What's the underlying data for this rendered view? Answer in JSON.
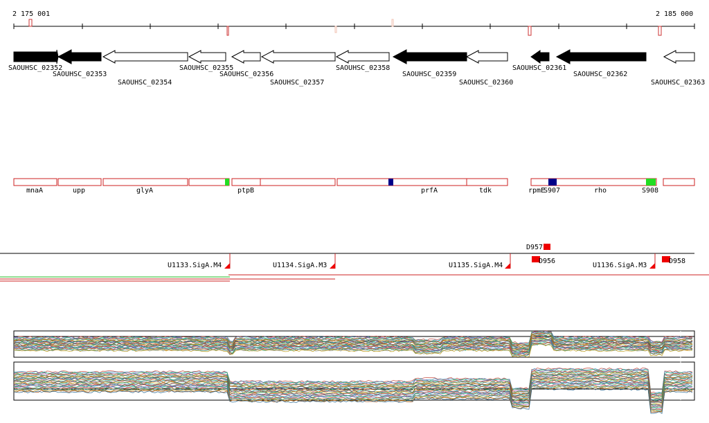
{
  "ruler": {
    "start_label": "2 175 001",
    "end_label": "2 185 000",
    "start_bp": 2175001,
    "end_bp": 2185000
  },
  "colors": {
    "gene_filled": "#000000",
    "gene_outline": "#000000",
    "annotation_border": "#cc2222",
    "green_marker": "#22dd22",
    "navy_marker": "#000088",
    "red_marker": "#ee0000",
    "track_line": "#cc2222"
  },
  "genes": [
    {
      "name": "SAOUHSC_02352",
      "dir": "right",
      "filled": true
    },
    {
      "name": "SAOUHSC_02353",
      "dir": "left",
      "filled": true
    },
    {
      "name": "SAOUHSC_02354",
      "dir": "left",
      "filled": false
    },
    {
      "name": "SAOUHSC_02355",
      "dir": "left",
      "filled": false
    },
    {
      "name": "SAOUHSC_02356",
      "dir": "left",
      "filled": false
    },
    {
      "name": "SAOUHSC_02357",
      "dir": "left",
      "filled": false
    },
    {
      "name": "SAOUHSC_02358",
      "dir": "left",
      "filled": false
    },
    {
      "name": "SAOUHSC_02359",
      "dir": "left",
      "filled": true
    },
    {
      "name": "SAOUHSC_02360",
      "dir": "left",
      "filled": false
    },
    {
      "name": "SAOUHSC_02361",
      "dir": "left",
      "filled": true
    },
    {
      "name": "SAOUHSC_02362",
      "dir": "left",
      "filled": true
    },
    {
      "name": "SAOUHSC_02363",
      "dir": "left",
      "filled": false
    }
  ],
  "annotations": [
    {
      "name": "mnaA"
    },
    {
      "name": "upp"
    },
    {
      "name": "glyA"
    },
    {
      "name": "ptpB"
    },
    {
      "name": "prfA"
    },
    {
      "name": "tdk"
    },
    {
      "name": "rpmE"
    },
    {
      "name": "S907"
    },
    {
      "name": "rho"
    },
    {
      "name": "S908"
    }
  ],
  "promoters": [
    {
      "name": "U1133.SigA.M4"
    },
    {
      "name": "U1134.SigA.M3"
    },
    {
      "name": "U1135.SigA.M4"
    },
    {
      "name": "U1136.SigA.M3"
    }
  ],
  "sites": [
    {
      "name": "D957"
    },
    {
      "name": "D956"
    },
    {
      "name": "D958"
    }
  ]
}
